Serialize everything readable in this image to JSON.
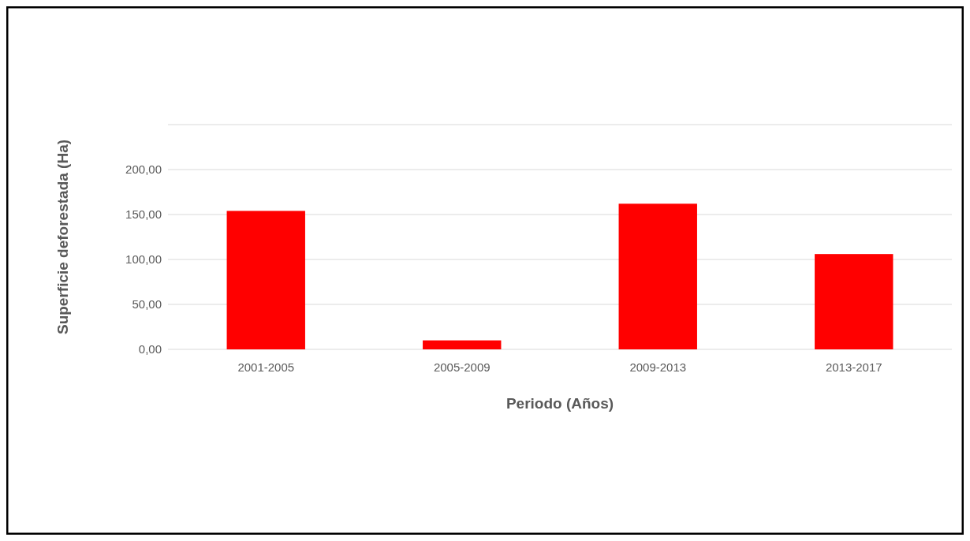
{
  "chart_data": {
    "type": "bar",
    "xlabel": "Periodo (Años)",
    "ylabel": "Superficie deforestada (Ha)",
    "categories": [
      "2001-2005",
      "2005-2009",
      "2009-2013",
      "2013-2017"
    ],
    "values": [
      154,
      10,
      162,
      106
    ],
    "color": "#ff0000",
    "ylim": [
      0,
      250
    ],
    "yticks": [
      {
        "value": 0,
        "label": "0,00"
      },
      {
        "value": 50,
        "label": "50,00"
      },
      {
        "value": 100,
        "label": "100,00"
      },
      {
        "value": 150,
        "label": "150,00"
      },
      {
        "value": 200,
        "label": "200,00"
      },
      {
        "value": 250,
        "label": null
      }
    ],
    "grid": "y"
  }
}
